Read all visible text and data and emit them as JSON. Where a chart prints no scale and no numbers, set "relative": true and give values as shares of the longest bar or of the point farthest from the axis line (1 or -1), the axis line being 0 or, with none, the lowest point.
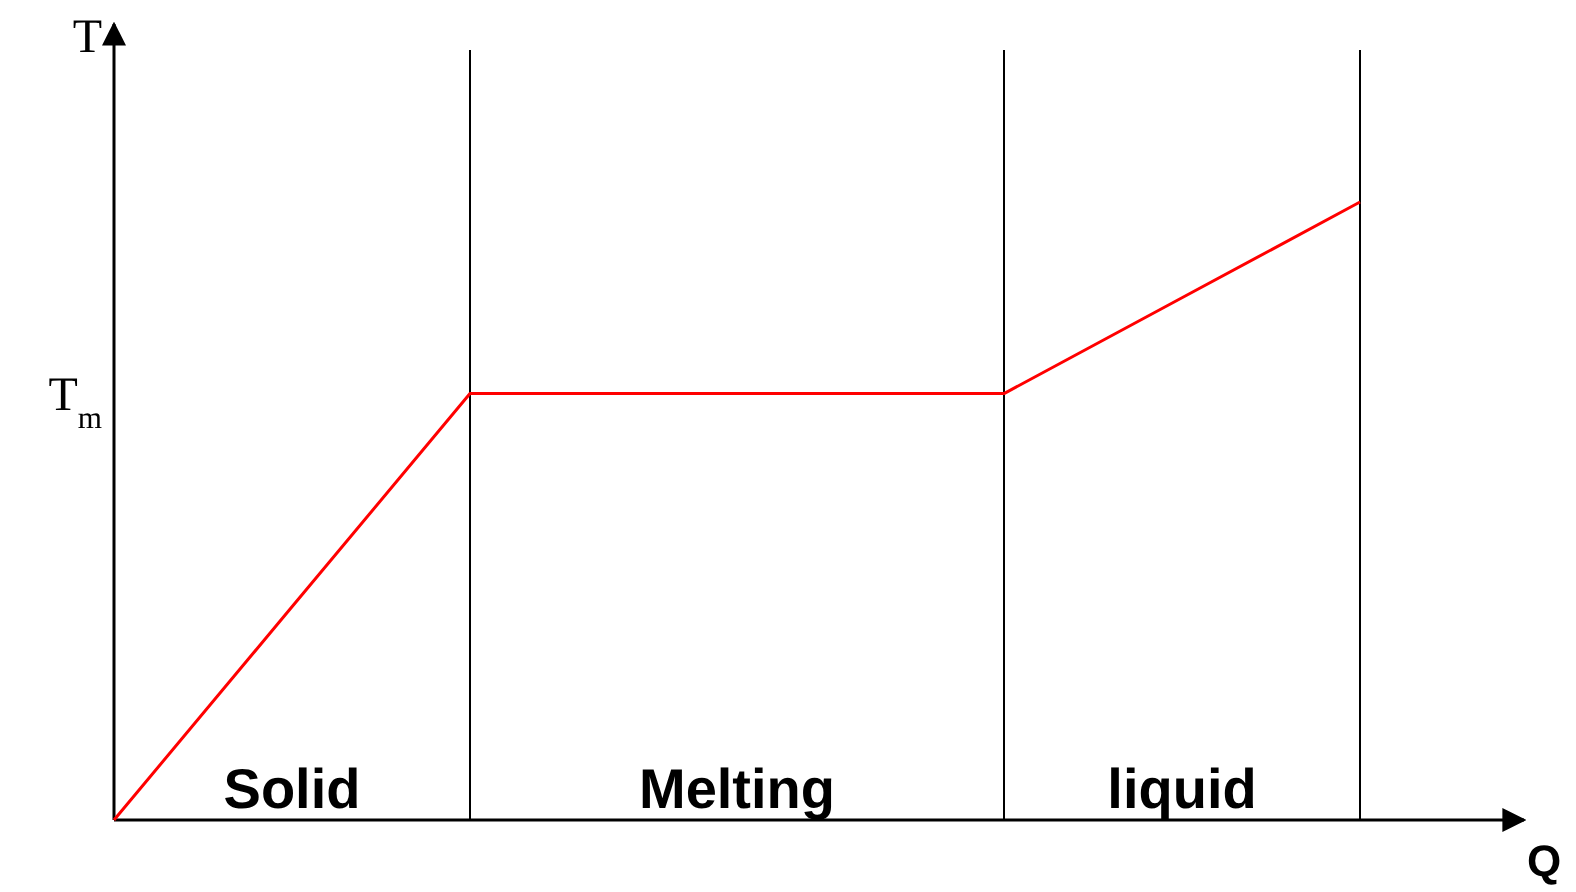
{
  "chart_data": {
    "type": "line",
    "relative": true,
    "xlabel": "Q",
    "ylabel": "T",
    "categories": [
      null,
      null,
      null,
      null,
      null,
      null,
      null,
      null
    ],
    "series": [
      {
        "color": "#ff0000",
        "values": [
          0,
          0.345,
          0.69,
          0.69,
          0.69,
          0.69,
          0.845,
          1
        ]
      }
    ],
    "annotations": [
      "T$_{m}$",
      "Solid",
      "Melting",
      "liquid"
    ],
    "grid": "x",
    "marker": "none",
    "line_style": "solid"
  }
}
